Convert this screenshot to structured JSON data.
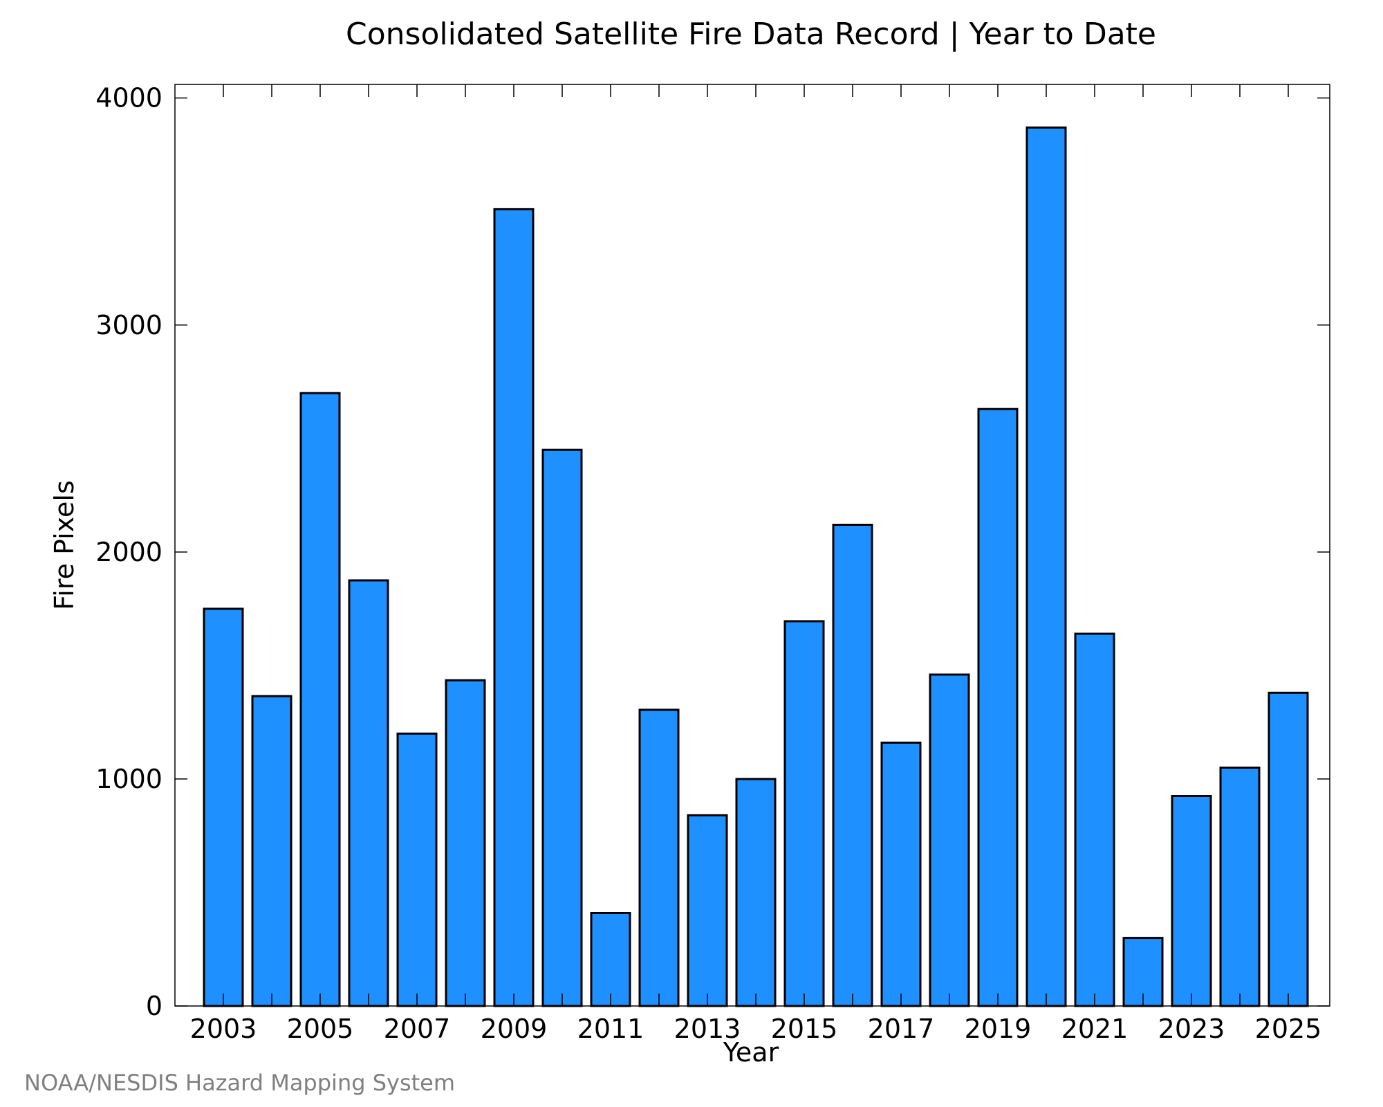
{
  "chart_data": {
    "type": "bar",
    "title": "Consolidated Satellite Fire Data Record | Year to Date",
    "xlabel": "Year",
    "ylabel": "Fire Pixels",
    "categories": [
      "2003",
      "2004",
      "2005",
      "2006",
      "2007",
      "2008",
      "2009",
      "2010",
      "2011",
      "2012",
      "2013",
      "2014",
      "2015",
      "2016",
      "2017",
      "2018",
      "2019",
      "2020",
      "2021",
      "2022",
      "2023",
      "2024",
      "2025"
    ],
    "x_tick_labels": [
      "2003",
      "2005",
      "2007",
      "2009",
      "2011",
      "2013",
      "2015",
      "2017",
      "2019",
      "2021",
      "2023",
      "2025"
    ],
    "y_ticks": [
      0,
      1000,
      2000,
      3000,
      4000
    ],
    "y_tick_labels": [
      "0",
      "1000",
      "2000",
      "3000",
      "4000"
    ],
    "values": [
      1750,
      1365,
      2700,
      1875,
      1200,
      1435,
      3510,
      2450,
      410,
      1305,
      840,
      1000,
      1695,
      2120,
      1160,
      1460,
      2630,
      3870,
      1640,
      300,
      925,
      1050,
      1380
    ],
    "ylim": [
      0,
      4060
    ],
    "grid": false,
    "bar_color": "#1e90ff",
    "bar_edge_color": "#000000",
    "credit": "NOAA/NESDIS Hazard Mapping System"
  }
}
